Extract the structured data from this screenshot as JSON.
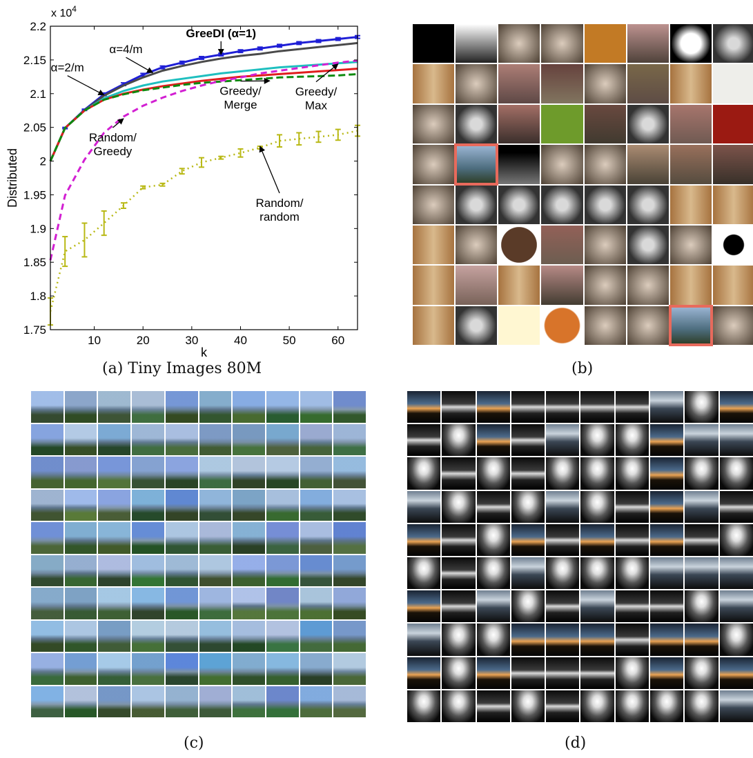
{
  "chart_data": {
    "type": "line",
    "caption": "(a) Tiny Images 80M",
    "exponent_label": "x 10",
    "exponent_sup": "4",
    "xlabel": "k",
    "ylabel": "Distributed",
    "xlim": [
      1,
      64
    ],
    "ylim": [
      1.75,
      2.2
    ],
    "xticks": [
      10,
      20,
      30,
      40,
      50,
      60
    ],
    "yticks": [
      1.75,
      1.8,
      1.85,
      1.9,
      1.95,
      2,
      2.05,
      2.1,
      2.15,
      2.2
    ],
    "ytick_labels": [
      "1.75",
      "1.8",
      "1.85",
      "1.9",
      "1.95",
      "2",
      "2.05",
      "2.1",
      "2.15",
      "2.2"
    ],
    "grid": false,
    "x": [
      1,
      4,
      8,
      12,
      16,
      20,
      24,
      28,
      32,
      36,
      40,
      44,
      48,
      52,
      56,
      60,
      64
    ],
    "series": [
      {
        "key": "greedi",
        "color": "#1f1fd6",
        "dash": "",
        "width": 3,
        "values": [
          2.0,
          2.049,
          2.076,
          2.099,
          2.114,
          2.128,
          2.139,
          2.146,
          2.153,
          2.158,
          2.163,
          2.167,
          2.171,
          2.175,
          2.178,
          2.181,
          2.184
        ],
        "err": [
          0,
          0.001,
          0.001,
          0.002,
          0.002,
          0.002,
          0.002,
          0.002,
          0.002,
          0.002,
          0.002,
          0.002,
          0.002,
          0.002,
          0.002,
          0.002,
          0.002
        ]
      },
      {
        "key": "alpha4",
        "color": "#4a4a4a",
        "dash": "",
        "width": 3,
        "values": [
          2.0,
          2.049,
          2.075,
          2.097,
          2.112,
          2.124,
          2.134,
          2.141,
          2.147,
          2.152,
          2.156,
          2.159,
          2.163,
          2.166,
          2.169,
          2.172,
          2.175
        ],
        "err": [
          0,
          0,
          0,
          0,
          0,
          0,
          0,
          0,
          0,
          0,
          0,
          0,
          0,
          0,
          0,
          0,
          0
        ]
      },
      {
        "key": "alpha2",
        "color": "#1fbfbf",
        "dash": "",
        "width": 3,
        "values": [
          2.0,
          2.049,
          2.075,
          2.093,
          2.104,
          2.112,
          2.118,
          2.122,
          2.126,
          2.13,
          2.133,
          2.136,
          2.139,
          2.141,
          2.143,
          2.145,
          2.147
        ],
        "err": [
          0,
          0,
          0,
          0,
          0,
          0,
          0,
          0,
          0,
          0,
          0,
          0,
          0,
          0,
          0,
          0,
          0
        ]
      },
      {
        "key": "greedymax",
        "color": "#e01d1d",
        "dash": "",
        "width": 3,
        "values": [
          2.0,
          2.049,
          2.075,
          2.091,
          2.1,
          2.106,
          2.111,
          2.115,
          2.119,
          2.122,
          2.125,
          2.127,
          2.129,
          2.131,
          2.133,
          2.135,
          2.137
        ],
        "err": [
          0,
          0,
          0,
          0,
          0,
          0,
          0,
          0,
          0,
          0,
          0,
          0,
          0,
          0,
          0,
          0,
          0
        ]
      },
      {
        "key": "greedymerge",
        "color": "#0e8a0e",
        "dash": "10,5",
        "width": 3,
        "values": [
          2.0,
          2.049,
          2.075,
          2.091,
          2.099,
          2.105,
          2.109,
          2.113,
          2.116,
          2.118,
          2.12,
          2.122,
          2.124,
          2.125,
          2.126,
          2.127,
          2.129
        ],
        "err": [
          0,
          0,
          0,
          0,
          0,
          0,
          0,
          0,
          0,
          0,
          0,
          0,
          0,
          0,
          0,
          0,
          0
        ]
      },
      {
        "key": "randgreedy",
        "color": "#d21fd2",
        "dash": "9,6",
        "width": 3,
        "values": [
          1.853,
          1.949,
          2.002,
          2.042,
          2.066,
          2.082,
          2.094,
          2.104,
          2.112,
          2.119,
          2.124,
          2.13,
          2.134,
          2.138,
          2.142,
          2.146,
          2.149
        ],
        "err": [
          0,
          0,
          0,
          0,
          0,
          0,
          0,
          0,
          0,
          0,
          0,
          0,
          0,
          0,
          0,
          0,
          0
        ]
      },
      {
        "key": "randrand",
        "color": "#b8b814",
        "dash": "2,5",
        "width": 2.5,
        "values": [
          1.777,
          1.866,
          1.883,
          1.908,
          1.934,
          1.961,
          1.965,
          1.985,
          1.998,
          2.005,
          2.012,
          2.02,
          2.03,
          2.033,
          2.036,
          2.039,
          2.045
        ],
        "err": [
          0.02,
          0.022,
          0.025,
          0.018,
          0.004,
          0.002,
          0.002,
          0.004,
          0.007,
          0.002,
          0.006,
          0.002,
          0.009,
          0.009,
          0.008,
          0.008,
          0.008
        ]
      }
    ],
    "annotations": [
      {
        "lines": [
          "GreeDI (α=1)"
        ],
        "bold": true,
        "tx": 36,
        "ty": 2.19,
        "ax": 36,
        "ay": 2.158,
        "arrow": true
      },
      {
        "lines": [
          "α=4/m"
        ],
        "bold": false,
        "tx": 16.5,
        "ty": 2.166,
        "ax": 22,
        "ay": 2.131,
        "arrow": true
      },
      {
        "lines": [
          "α=2/m"
        ],
        "bold": false,
        "tx": 4.5,
        "ty": 2.139,
        "ax": 12,
        "ay": 2.098,
        "arrow": true
      },
      {
        "lines": [
          "Greedy/",
          "Merge"
        ],
        "bold": false,
        "tx": 40,
        "ty": 2.094,
        "ax": 46,
        "ay": 2.119,
        "arrow": true
      },
      {
        "lines": [
          "Greedy/",
          "Max"
        ],
        "bold": false,
        "tx": 55.5,
        "ty": 2.093,
        "ax": 60,
        "ay": 2.144,
        "arrow": true
      },
      {
        "lines": [
          "Random/",
          "Greedy"
        ],
        "bold": false,
        "tx": 13.8,
        "ty": 2.025,
        "ax": 16,
        "ay": 2.063,
        "arrow": true
      },
      {
        "lines": [
          "Random/",
          "random"
        ],
        "bold": false,
        "tx": 48,
        "ty": 1.928,
        "ax": 44,
        "ay": 2.022,
        "arrow": true
      }
    ]
  },
  "panels": {
    "b": {
      "caption": "(b)"
    },
    "c": {
      "caption": "(c)"
    },
    "d": {
      "caption": "(d)"
    }
  }
}
